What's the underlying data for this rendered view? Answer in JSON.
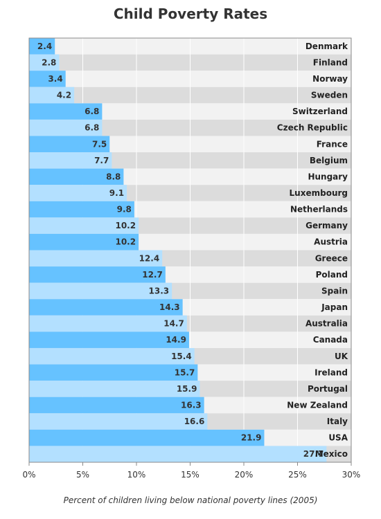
{
  "chart_data": {
    "type": "bar",
    "orientation": "horizontal",
    "title": "Child Poverty Rates",
    "footnote": "Percent of children living below national poverty lines (2005)",
    "categories": [
      "Denmark",
      "Finland",
      "Norway",
      "Sweden",
      "Switzerland",
      "Czech Republic",
      "France",
      "Belgium",
      "Hungary",
      "Luxembourg",
      "Netherlands",
      "Germany",
      "Austria",
      "Greece",
      "Poland",
      "Spain",
      "Japan",
      "Australia",
      "Canada",
      "UK",
      "Ireland",
      "Portugal",
      "New Zealand",
      "Italy",
      "USA",
      "Mexico"
    ],
    "values": [
      2.4,
      2.8,
      3.4,
      4.2,
      6.8,
      6.8,
      7.5,
      7.7,
      8.8,
      9.1,
      9.8,
      10.2,
      10.2,
      12.4,
      12.7,
      13.3,
      14.3,
      14.7,
      14.9,
      15.4,
      15.7,
      15.9,
      16.3,
      16.6,
      21.9,
      27.7
    ],
    "xlim": [
      0,
      30
    ],
    "x_ticks": [
      0,
      5,
      10,
      15,
      20,
      25,
      30
    ],
    "x_tick_labels": [
      "0%",
      "5%",
      "10%",
      "15%",
      "20%",
      "25%",
      "30%"
    ],
    "grid": "vertical",
    "colors": {
      "bar_dark": "#66c2ff",
      "bar_light": "#b3e0ff",
      "band_light": "#f2f2f2",
      "band_dark": "#dcdcdc",
      "grid": "#ffffff",
      "axis": "#888888"
    }
  }
}
